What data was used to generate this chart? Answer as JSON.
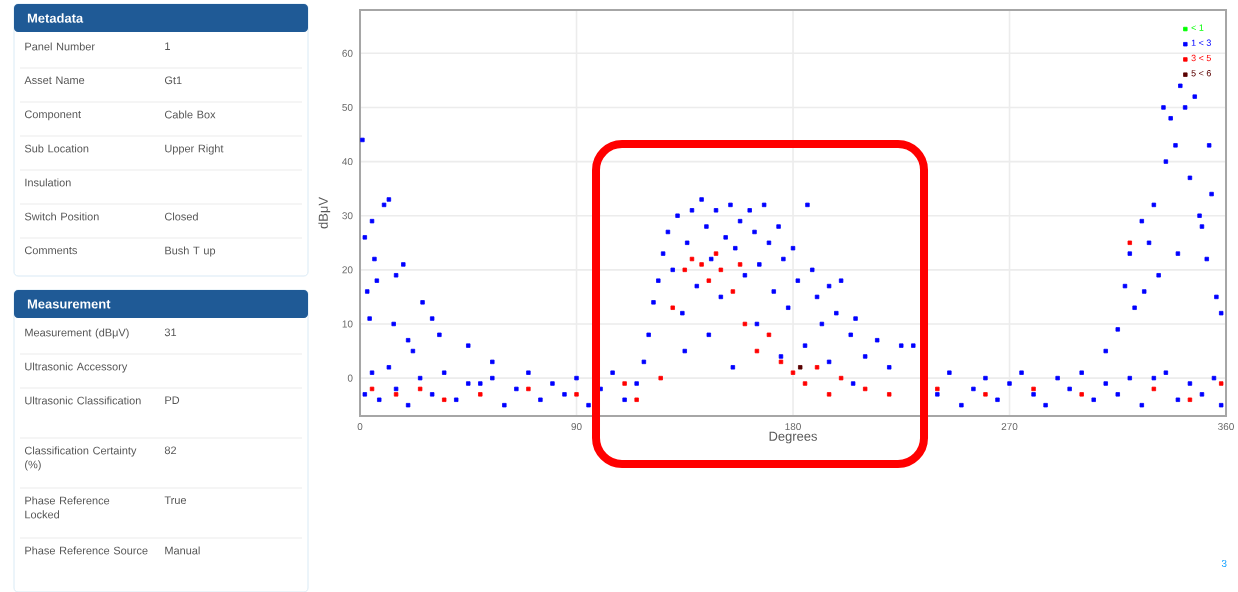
{
  "chart_data": [
    {
      "type": "other",
      "title": "Metadata",
      "categories": [
        "Panel Number",
        "Asset Name",
        "Component",
        "Sub Location",
        "Insulation",
        "Switch Position",
        "Comments"
      ],
      "value_labels": [
        "1",
        "Gt1",
        "Cable Box",
        "Upper Right",
        null,
        "Closed",
        "Bush T up"
      ]
    },
    {
      "type": "other",
      "title": "Measurement",
      "categories": [
        "Measurement (dBμV)",
        "Ultrasonic Accessory",
        "Ultrasonic Classification",
        "Classification Certainty (%)",
        "Phase Reference Locked",
        "Phase Reference Source"
      ],
      "value_labels": [
        "31",
        null,
        "PD",
        "82",
        "True",
        "Manual"
      ]
    },
    {
      "type": "scatter",
      "xlabel": "Degrees",
      "ylabel": "dBμV",
      "xlim": [
        0,
        360
      ],
      "xticks": [
        0,
        90,
        180,
        270,
        360
      ],
      "ylim": [
        -7,
        68
      ],
      "yticks": [
        0,
        10,
        20,
        30,
        40,
        50,
        60
      ],
      "grid": true,
      "legend": "top right",
      "marker": "square",
      "annotations": [
        "3"
      ],
      "series": [
        {
          "name": "< 1",
          "color": "#00ff00"
        },
        {
          "name": "1 < 3",
          "color": "#0000ff",
          "x": [
            2,
            5,
            8,
            12,
            15,
            20,
            25,
            30,
            35,
            40,
            45,
            50,
            55,
            60,
            65,
            70,
            75,
            80,
            85,
            90,
            95,
            100,
            105,
            110,
            115,
            240,
            245,
            250,
            255,
            260,
            265,
            270,
            275,
            280,
            285,
            290,
            295,
            300,
            305,
            310,
            315,
            320,
            325,
            330,
            335,
            340,
            345,
            350,
            355,
            358,
            1,
            2,
            3,
            4,
            5,
            6,
            7,
            10,
            12,
            14,
            15,
            18,
            20,
            22,
            26,
            30,
            33,
            45,
            55,
            118,
            120,
            122,
            124,
            126,
            128,
            130,
            132,
            134,
            136,
            138,
            140,
            142,
            144,
            146,
            148,
            150,
            152,
            154,
            156,
            158,
            160,
            162,
            164,
            166,
            168,
            170,
            172,
            174,
            176,
            178,
            180,
            182,
            186,
            188,
            190,
            192,
            195,
            198,
            200,
            204,
            206,
            210,
            215,
            220,
            225,
            230,
            135,
            145,
            155,
            165,
            175,
            185,
            195,
            205,
            310,
            315,
            318,
            320,
            322,
            325,
            328,
            330,
            332,
            335,
            337,
            339,
            341,
            343,
            345,
            347,
            349,
            350,
            352,
            354,
            356,
            358,
            353,
            334,
            326,
            340
          ],
          "values": [
            -3,
            1,
            -4,
            2,
            -2,
            -5,
            0,
            -3,
            1,
            -4,
            -1,
            -1,
            0,
            -5,
            -2,
            1,
            -4,
            -1,
            -3,
            0,
            -5,
            -2,
            1,
            -4,
            -1,
            -3,
            1,
            -5,
            -2,
            0,
            -4,
            -1,
            1,
            -3,
            -5,
            0,
            -2,
            1,
            -4,
            -1,
            -3,
            0,
            -5,
            0,
            1,
            -4,
            -1,
            -3,
            0,
            -5,
            44,
            26,
            16,
            11,
            29,
            22,
            18,
            32,
            33,
            10,
            19,
            21,
            7,
            5,
            14,
            11,
            8,
            6,
            3,
            3,
            8,
            14,
            18,
            23,
            27,
            20,
            30,
            12,
            25,
            31,
            17,
            33,
            28,
            22,
            31,
            15,
            26,
            32,
            24,
            29,
            19,
            31,
            27,
            21,
            32,
            25,
            16,
            28,
            22,
            13,
            24,
            18,
            32,
            20,
            15,
            10,
            17,
            12,
            18,
            8,
            11,
            4,
            7,
            2,
            6,
            6,
            5,
            8,
            2,
            10,
            4,
            6,
            3,
            -1,
            5,
            9,
            17,
            23,
            13,
            29,
            25,
            32,
            19,
            40,
            48,
            43,
            54,
            50,
            37,
            52,
            30,
            28,
            22,
            34,
            15,
            12,
            43,
            50,
            16,
            23
          ]
        },
        {
          "name": "3 < 5",
          "color": "#ff0000",
          "x": [
            5,
            15,
            25,
            35,
            50,
            70,
            90,
            110,
            115,
            125,
            130,
            135,
            138,
            142,
            145,
            148,
            150,
            155,
            158,
            160,
            165,
            170,
            175,
            180,
            185,
            190,
            195,
            200,
            210,
            220,
            240,
            260,
            280,
            300,
            320,
            330,
            345,
            358
          ],
          "values": [
            -2,
            -3,
            -2,
            -4,
            -3,
            -2,
            -3,
            -1,
            -4,
            0,
            13,
            20,
            22,
            21,
            18,
            23,
            20,
            16,
            21,
            10,
            5,
            8,
            3,
            1,
            -1,
            2,
            -3,
            0,
            -2,
            -3,
            -2,
            -3,
            -2,
            -3,
            25,
            -2,
            -4,
            -1
          ]
        },
        {
          "name": "5 < 6",
          "color": "#5a0000",
          "x": [
            183
          ],
          "values": [
            2
          ]
        }
      ]
    }
  ]
}
